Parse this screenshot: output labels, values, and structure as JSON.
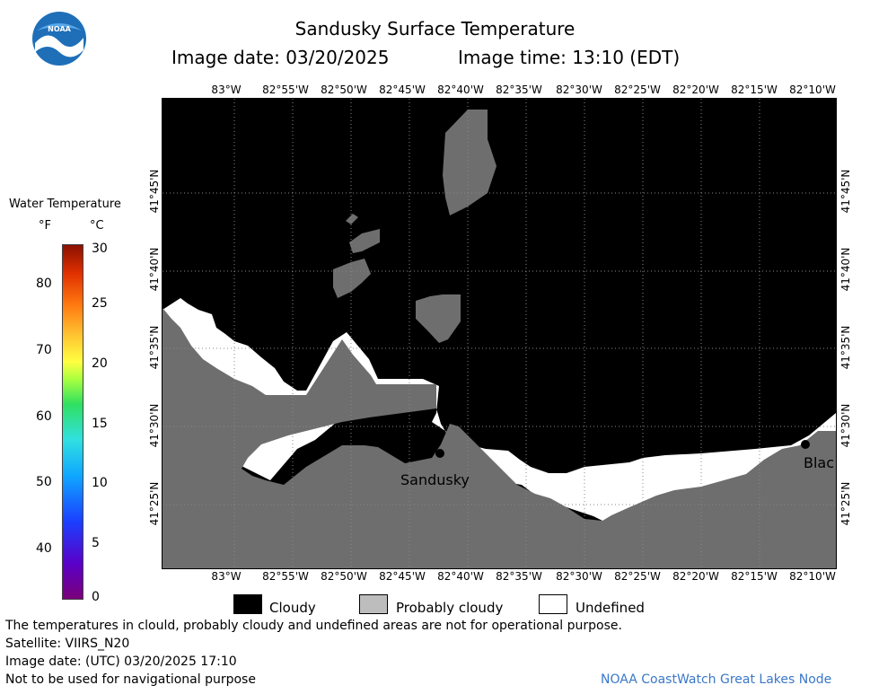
{
  "header": {
    "title": "Sandusky Surface Temperature",
    "image_date_label": "Image date: 03/20/2025",
    "image_time_label": "Image time: 13:10 (EDT)"
  },
  "logo": {
    "text": "NOAA"
  },
  "map": {
    "longitudes_top": [
      "83°W",
      "82°55'W",
      "82°50'W",
      "82°45'W",
      "82°40'W",
      "82°35'W",
      "82°30'W",
      "82°25'W",
      "82°20'W",
      "82°15'W",
      "82°10'W"
    ],
    "longitudes_bottom": [
      "83°W",
      "82°55'W",
      "82°50'W",
      "82°45'W",
      "82°40'W",
      "82°35'W",
      "82°30'W",
      "82°25'W",
      "82°20'W",
      "82°15'W",
      "82°10'W"
    ],
    "latitudes_left": [
      "41°45'N",
      "41°40'N",
      "41°35'N",
      "41°30'N",
      "41°25'N"
    ],
    "latitudes_right": [
      "41°45'N",
      "41°40'N",
      "41°35'N",
      "41°30'N",
      "41°25'N"
    ],
    "places": {
      "sandusky": "Sandusky",
      "blac": "Blac"
    },
    "colors": {
      "cloudy": "#000000",
      "probably_cloudy": "#6e6e6e",
      "undefined": "#ffffff",
      "land": "#6e6e6e"
    }
  },
  "scale": {
    "title": "Water Temperature",
    "unit_f": "°F",
    "unit_c": "°C",
    "f_ticks": [
      "80",
      "70",
      "60",
      "50",
      "40"
    ],
    "c_ticks": [
      "30",
      "25",
      "20",
      "15",
      "10",
      "5",
      "0"
    ]
  },
  "legend": {
    "cloudy": "Cloudy",
    "probably_cloudy": "Probably cloudy",
    "undefined": "Undefined"
  },
  "footer": {
    "line1": "The temperatures in clould, probably cloudy and undefined areas are not for operational purpose.",
    "line2": "Satellite: VIIRS_N20",
    "line3": "Image date: (UTC) 03/20/2025  17:10",
    "line4": "Not to be used for navigational purpose",
    "credit": "NOAA CoastWatch Great Lakes Node"
  }
}
